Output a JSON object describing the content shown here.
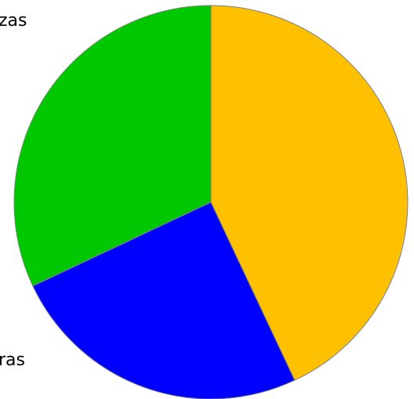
{
  "chart_data": {
    "type": "pie",
    "title": "",
    "slices": [
      {
        "label": "",
        "value": 43,
        "color": "#FFC000"
      },
      {
        "label": "",
        "value": 25,
        "color": "#0000FF"
      },
      {
        "label": "",
        "value": 32,
        "color": "#00C800"
      }
    ],
    "visible_label_fragments": {
      "top_left": "zas",
      "top_left_2": "",
      "bottom_left": "ras"
    },
    "start_angle_deg": 0,
    "direction": "clockwise",
    "slice_border_color": "#808080"
  }
}
